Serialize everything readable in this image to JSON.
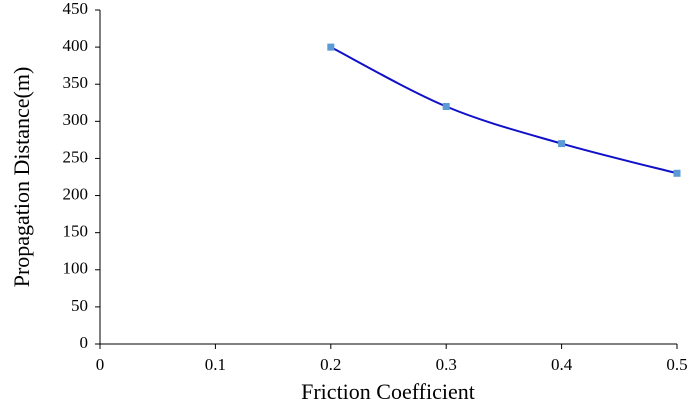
{
  "chart_data": {
    "type": "line",
    "x_label": "Friction Coefficient",
    "y_label": "Propagation Distance(m)",
    "x": [
      0.2,
      0.3,
      0.4,
      0.5
    ],
    "series": [
      {
        "name": "Propagation Distance",
        "color": "#1010c8",
        "marker_color": "#5b9bd5",
        "values": [
          400,
          320,
          270,
          230
        ]
      }
    ],
    "xlim": [
      0,
      0.5
    ],
    "xticks": [
      0,
      0.1,
      0.2,
      0.3,
      0.4,
      0.5
    ],
    "ylim": [
      0,
      450
    ],
    "yticks": [
      0,
      50,
      100,
      150,
      200,
      250,
      300,
      350,
      400,
      450
    ],
    "grid": false
  }
}
